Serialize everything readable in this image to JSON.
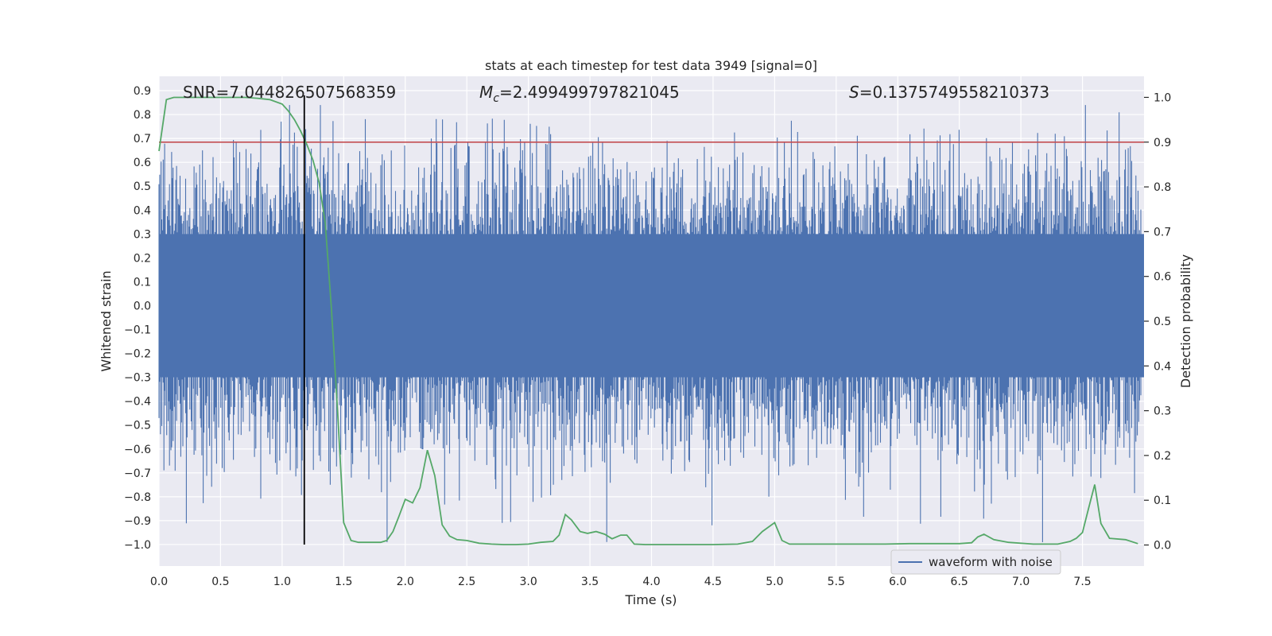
{
  "chart_data": {
    "type": "line",
    "title": "stats at each timestep for test data 3949 [signal=0]",
    "xlabel": "Time (s)",
    "ylabel": "Whitened strain",
    "y2label": "Detection probability",
    "xlim": [
      0.0,
      8.0
    ],
    "ylim": [
      -1.09,
      0.96
    ],
    "y2lim": [
      -0.047,
      1.047
    ],
    "xticks": [
      "0.0",
      "0.5",
      "1.0",
      "1.5",
      "2.0",
      "2.5",
      "3.0",
      "3.5",
      "4.0",
      "4.5",
      "5.0",
      "5.5",
      "6.0",
      "6.5",
      "7.0",
      "7.5"
    ],
    "xtick_values": [
      0.0,
      0.5,
      1.0,
      1.5,
      2.0,
      2.5,
      3.0,
      3.5,
      4.0,
      4.5,
      5.0,
      5.5,
      6.0,
      6.5,
      7.0,
      7.5
    ],
    "yticks": [
      "0.9",
      "0.8",
      "0.7",
      "0.6",
      "0.5",
      "0.4",
      "0.3",
      "0.2",
      "0.1",
      "0.0",
      "−0.1",
      "−0.2",
      "−0.3",
      "−0.4",
      "−0.5",
      "−0.6",
      "−0.7",
      "−0.8",
      "−0.9",
      "−1.0"
    ],
    "ytick_values": [
      0.9,
      0.8,
      0.7,
      0.6,
      0.5,
      0.4,
      0.3,
      0.2,
      0.1,
      0.0,
      -0.1,
      -0.2,
      -0.3,
      -0.4,
      -0.5,
      -0.6,
      -0.7,
      -0.8,
      -0.9,
      -1.0
    ],
    "y2ticks": [
      "1.0",
      "0.9",
      "0.8",
      "0.7",
      "0.6",
      "0.5",
      "0.4",
      "0.3",
      "0.2",
      "0.1",
      "0.0"
    ],
    "y2tick_values": [
      1.0,
      0.9,
      0.8,
      0.7,
      0.6,
      0.5,
      0.4,
      0.3,
      0.2,
      0.1,
      0.0
    ],
    "annotations": {
      "snr": "SNR=7.044826507568359",
      "mc_symbol": "M",
      "mc_sub": "c",
      "mc_value": "=2.499499797821045",
      "s_symbol": "S",
      "s_value": "=0.1375749558210373"
    },
    "threshold": {
      "axis": "y2",
      "value": 0.9
    },
    "marker_time": 1.18,
    "waveform": {
      "name": "waveform with noise",
      "color": "#4c72b0",
      "typical_amplitude": 0.3,
      "max": 0.84,
      "min": -0.99
    },
    "probability": {
      "color": "#55a868",
      "x": [
        0.0,
        0.06,
        0.12,
        0.2,
        0.3,
        0.4,
        0.5,
        0.6,
        0.7,
        0.8,
        0.9,
        1.0,
        1.05,
        1.1,
        1.15,
        1.2,
        1.25,
        1.3,
        1.35,
        1.4,
        1.45,
        1.5,
        1.56,
        1.62,
        1.7,
        1.8,
        1.85,
        1.9,
        1.95,
        2.0,
        2.06,
        2.12,
        2.18,
        2.24,
        2.3,
        2.36,
        2.42,
        2.5,
        2.6,
        2.7,
        2.8,
        2.9,
        3.0,
        3.1,
        3.2,
        3.25,
        3.3,
        3.35,
        3.42,
        3.48,
        3.55,
        3.62,
        3.68,
        3.75,
        3.8,
        3.86,
        3.95,
        4.1,
        4.3,
        4.5,
        4.7,
        4.82,
        4.9,
        4.96,
        5.0,
        5.06,
        5.12,
        5.3,
        5.5,
        5.7,
        5.9,
        6.1,
        6.3,
        6.5,
        6.6,
        6.65,
        6.7,
        6.78,
        6.9,
        7.1,
        7.3,
        7.4,
        7.45,
        7.5,
        7.55,
        7.6,
        7.65,
        7.72,
        7.85,
        7.95
      ],
      "y": [
        0.88,
        0.995,
        1.0,
        1.0,
        1.0,
        1.0,
        1.0,
        1.0,
        1.0,
        0.998,
        0.995,
        0.985,
        0.97,
        0.95,
        0.925,
        0.895,
        0.86,
        0.81,
        0.72,
        0.53,
        0.3,
        0.05,
        0.01,
        0.006,
        0.006,
        0.006,
        0.01,
        0.03,
        0.065,
        0.102,
        0.094,
        0.128,
        0.212,
        0.155,
        0.045,
        0.02,
        0.012,
        0.01,
        0.004,
        0.002,
        0.001,
        0.001,
        0.002,
        0.006,
        0.008,
        0.022,
        0.068,
        0.056,
        0.03,
        0.026,
        0.03,
        0.024,
        0.014,
        0.022,
        0.022,
        0.002,
        0.001,
        0.001,
        0.001,
        0.001,
        0.002,
        0.008,
        0.03,
        0.042,
        0.05,
        0.01,
        0.002,
        0.002,
        0.002,
        0.002,
        0.002,
        0.003,
        0.003,
        0.003,
        0.005,
        0.018,
        0.024,
        0.012,
        0.006,
        0.002,
        0.002,
        0.008,
        0.015,
        0.028,
        0.082,
        0.135,
        0.048,
        0.015,
        0.012,
        0.003
      ]
    }
  },
  "legend": {
    "label": "waveform with noise",
    "position": "lower-right"
  }
}
